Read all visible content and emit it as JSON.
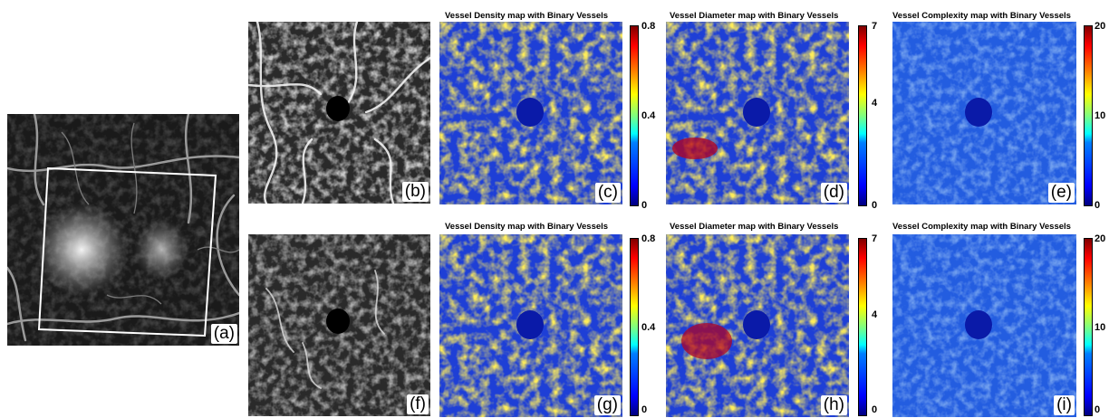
{
  "figure": {
    "panel_a": {
      "label": "(a)"
    },
    "row1": {
      "octa": {
        "label": "(b)"
      },
      "density": {
        "title": "Vessel Density map with Binary Vessels",
        "label": "(c)",
        "ticks": [
          "0.8",
          "0.4",
          "0"
        ]
      },
      "diameter": {
        "title": "Vessel Diameter map with Binary Vessels",
        "label": "(d)",
        "ticks": [
          "7",
          "4",
          "0"
        ]
      },
      "complexity": {
        "title": "Vessel Complexity map with Binary Vessels",
        "label": "(e)",
        "ticks": [
          "20",
          "10",
          "0"
        ]
      }
    },
    "row2": {
      "octa": {
        "label": "(f)"
      },
      "density": {
        "title": "Vessel Density map with Binary Vessels",
        "label": "(g)",
        "ticks": [
          "0.8",
          "0.4",
          "0"
        ]
      },
      "diameter": {
        "title": "Vessel Diameter map with Binary Vessels",
        "label": "(h)",
        "ticks": [
          "7",
          "4",
          "0"
        ]
      },
      "complexity": {
        "title": "Vessel Complexity map with Binary Vessels",
        "label": "(i)",
        "ticks": [
          "20",
          "10",
          "0"
        ]
      }
    },
    "colormap": "jet",
    "colors": {
      "map_background": "#1e3fd6",
      "fovea": "#0a1aa8",
      "octa_background": "#2a2a2a",
      "fa_background": "#1a1a1a"
    }
  }
}
